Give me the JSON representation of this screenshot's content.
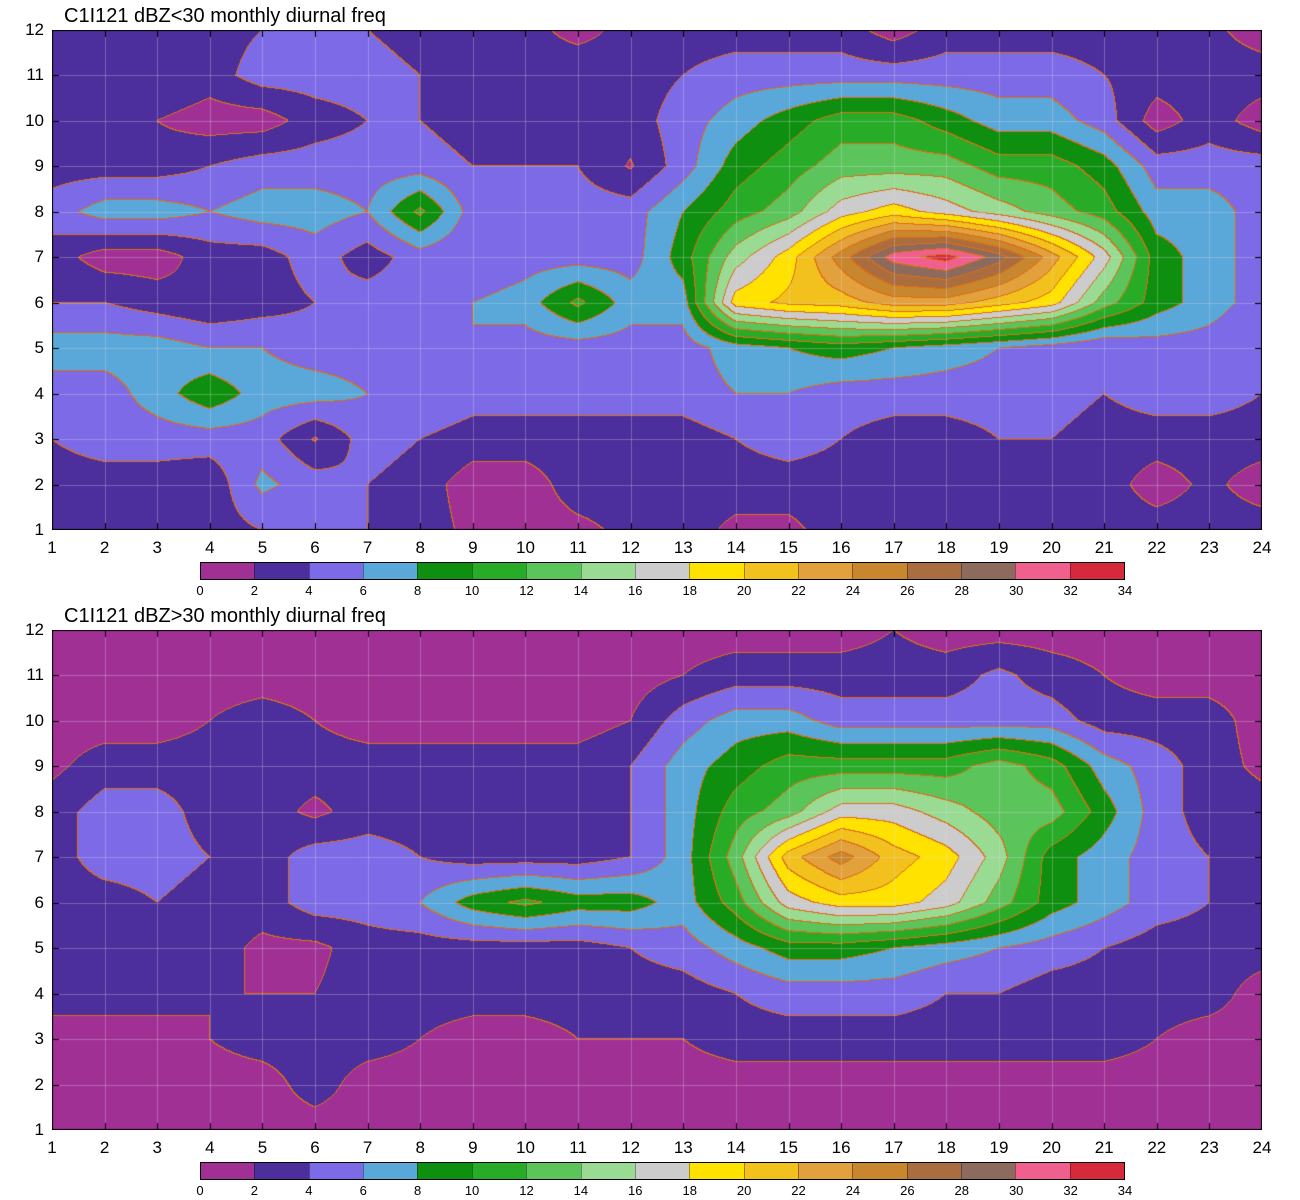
{
  "figure": {
    "background": "#ffffff"
  },
  "palette": {
    "band_colors": [
      "#A13095",
      "#4C2E9C",
      "#7C6AE6",
      "#5AA7DA",
      "#0F8F0F",
      "#28AC28",
      "#5BC45B",
      "#9ADB94",
      "#CCCCCC",
      "#FFE200",
      "#F2C11E",
      "#E2A13C",
      "#C8862E",
      "#AA6D3F",
      "#8C6A5D",
      "#F0608E",
      "#D62A3C"
    ],
    "contour_line_color": "#DC6E14",
    "grid_line_color": "#E0E0E0",
    "axis_color": "#000000"
  },
  "colorbar": {
    "labels": [
      "0",
      "2",
      "4",
      "6",
      "8",
      "10",
      "12",
      "14",
      "16",
      "18",
      "20",
      "22",
      "24",
      "26",
      "28",
      "30",
      "32",
      "34"
    ]
  },
  "chart_data": [
    {
      "type": "contour",
      "title": "C1I121 dBZ<30 monthly diurnal freq",
      "xlabel": "",
      "ylabel": "",
      "x_range": [
        1,
        24
      ],
      "y_range": [
        1,
        12
      ],
      "x_ticks": [
        1,
        2,
        3,
        4,
        5,
        6,
        7,
        8,
        9,
        10,
        11,
        12,
        13,
        14,
        15,
        16,
        17,
        18,
        19,
        20,
        21,
        22,
        23,
        24
      ],
      "y_ticks": [
        1,
        2,
        3,
        4,
        5,
        6,
        7,
        8,
        9,
        10,
        11,
        12
      ],
      "levels": [
        0,
        2,
        4,
        6,
        8,
        10,
        12,
        14,
        16,
        18,
        20,
        22,
        24,
        26,
        28,
        30,
        32,
        34
      ],
      "legend_position": "bottom",
      "grid": true,
      "values": [
        [
          3,
          3,
          3,
          3,
          4,
          4,
          4,
          3,
          1.5,
          1,
          1.5,
          2.5,
          3,
          1.5,
          1.5,
          3,
          3,
          3,
          3,
          3,
          3,
          3,
          3,
          3
        ],
        [
          3,
          3,
          3,
          2.5,
          6.5,
          5,
          4,
          3,
          1,
          1,
          3,
          3,
          3,
          3,
          3,
          3,
          3,
          3,
          3,
          3,
          3,
          1,
          2.5,
          1
        ],
        [
          4,
          5,
          5,
          5,
          5,
          1.8,
          5,
          4,
          3,
          3,
          3,
          3,
          3,
          4,
          5,
          4,
          3,
          3,
          4,
          4,
          3,
          3,
          3,
          3
        ],
        [
          5,
          5,
          7,
          9.5,
          7,
          7,
          6,
          6,
          5,
          5,
          5,
          5,
          5,
          6,
          6,
          5,
          5,
          5,
          5,
          5,
          4,
          5,
          5,
          4
        ],
        [
          7,
          7,
          7,
          6,
          6,
          5,
          5,
          6,
          6,
          5,
          5,
          5,
          5,
          7,
          8,
          9,
          8,
          7,
          6,
          5,
          4,
          5,
          5,
          4
        ],
        [
          4,
          4,
          3,
          2.2,
          3,
          4,
          5,
          5,
          6,
          7,
          10.5,
          7,
          7,
          19,
          20.5,
          21,
          23,
          23,
          21,
          19,
          13,
          9,
          7,
          5
        ],
        [
          3,
          1,
          1,
          3,
          3,
          5,
          3,
          5,
          4,
          5,
          5,
          5,
          9,
          15,
          19,
          25,
          31,
          33,
          29,
          23,
          17,
          9,
          7,
          5
        ],
        [
          5,
          7,
          7,
          6,
          7,
          7,
          6,
          10.5,
          5,
          4,
          5,
          5,
          8,
          11,
          13,
          17,
          19,
          17,
          15,
          13,
          11,
          7,
          7,
          5
        ],
        [
          3,
          3,
          3,
          4,
          5,
          5,
          5,
          5,
          4,
          4,
          4,
          1.8,
          5,
          9,
          11,
          13,
          13,
          13,
          11,
          11,
          9,
          5,
          5,
          5
        ],
        [
          3,
          3,
          2,
          1,
          1,
          3,
          4,
          4,
          3,
          3,
          3,
          3,
          5,
          7,
          9,
          11,
          11,
          9,
          7,
          7,
          5,
          1,
          3,
          1
        ],
        [
          3,
          4,
          4,
          3,
          5,
          5,
          5,
          4,
          3,
          3,
          4,
          3,
          4,
          5,
          5,
          5,
          5,
          5,
          5,
          5,
          4,
          3,
          3,
          3
        ],
        [
          3,
          3,
          3,
          3,
          4,
          4,
          4,
          3,
          3,
          3,
          1,
          3,
          3,
          3,
          3,
          3,
          1,
          3,
          3,
          3,
          3,
          3,
          2.5,
          1
        ]
      ]
    },
    {
      "type": "contour",
      "title": "C1I121 dBZ>30 monthly diurnal freq",
      "xlabel": "",
      "ylabel": "",
      "x_range": [
        1,
        24
      ],
      "y_range": [
        1,
        12
      ],
      "x_ticks": [
        1,
        2,
        3,
        4,
        5,
        6,
        7,
        8,
        9,
        10,
        11,
        12,
        13,
        14,
        15,
        16,
        17,
        18,
        19,
        20,
        21,
        22,
        23,
        24
      ],
      "y_ticks": [
        1,
        2,
        3,
        4,
        5,
        6,
        7,
        8,
        9,
        10,
        11,
        12
      ],
      "levels": [
        0,
        2,
        4,
        6,
        8,
        10,
        12,
        14,
        16,
        18,
        20,
        22,
        24,
        26,
        28,
        30,
        32,
        34
      ],
      "legend_position": "bottom",
      "grid": true,
      "values": [
        [
          1,
          1,
          1,
          1,
          1,
          1,
          1,
          1,
          2,
          1,
          1,
          1,
          1,
          1,
          2,
          1,
          1,
          1,
          1,
          1,
          1,
          1,
          1,
          1
        ],
        [
          1,
          1,
          1,
          1,
          1,
          3,
          1,
          1,
          1,
          1,
          1,
          1,
          1,
          1,
          1,
          1,
          1,
          1,
          1,
          1,
          1,
          1,
          1,
          1
        ],
        [
          1,
          1,
          1,
          2,
          3,
          3,
          3,
          2,
          1,
          1,
          2,
          2,
          2,
          3,
          3,
          3,
          3,
          3,
          3,
          3,
          3,
          2,
          1,
          1
        ],
        [
          3,
          3,
          3,
          2,
          2,
          2,
          3,
          3,
          3,
          3,
          3,
          3,
          3,
          4,
          5,
          5,
          5,
          4,
          4,
          3,
          3,
          3,
          3,
          1
        ],
        [
          3,
          3,
          4,
          3,
          1.5,
          1.5,
          3,
          3,
          3,
          3,
          3,
          4,
          5,
          7,
          9,
          9,
          8,
          7,
          6,
          5,
          4,
          3,
          3,
          3
        ],
        [
          3,
          3,
          4,
          3,
          3,
          5,
          5,
          6,
          9,
          10.5,
          9,
          9,
          7,
          11,
          17,
          19,
          19,
          17,
          13,
          9,
          7,
          5,
          4,
          3
        ],
        [
          3,
          5,
          5,
          4,
          3,
          5,
          5,
          4,
          3,
          3,
          3,
          4,
          7,
          13,
          21,
          25,
          21,
          19,
          15,
          9,
          7,
          5,
          4,
          3
        ],
        [
          3,
          5,
          5,
          3,
          3,
          1.5,
          3,
          3,
          3,
          3,
          3,
          4,
          7,
          11,
          13,
          17,
          17,
          15,
          13,
          13,
          9,
          5,
          3,
          3
        ],
        [
          1.5,
          3,
          3,
          3,
          3,
          3,
          3,
          3,
          3,
          3,
          3,
          4,
          7,
          9,
          11,
          11,
          11,
          11,
          13,
          11,
          7,
          5,
          3,
          1.5
        ],
        [
          1,
          1,
          1,
          2,
          3,
          2,
          1,
          1,
          1,
          1,
          1,
          2,
          5,
          7,
          7,
          5,
          5,
          5,
          5,
          5,
          3,
          3,
          3,
          1
        ],
        [
          1,
          1,
          1,
          1,
          1,
          1,
          1,
          1,
          1,
          1,
          1,
          1,
          2,
          3,
          3,
          3,
          3,
          3,
          4.5,
          3,
          2,
          1,
          1,
          1
        ],
        [
          1,
          1,
          1,
          1,
          1,
          1,
          1,
          1,
          1,
          1,
          1,
          1,
          1,
          1,
          1,
          1,
          2,
          1,
          1,
          1,
          1,
          1,
          1,
          1
        ]
      ]
    }
  ]
}
